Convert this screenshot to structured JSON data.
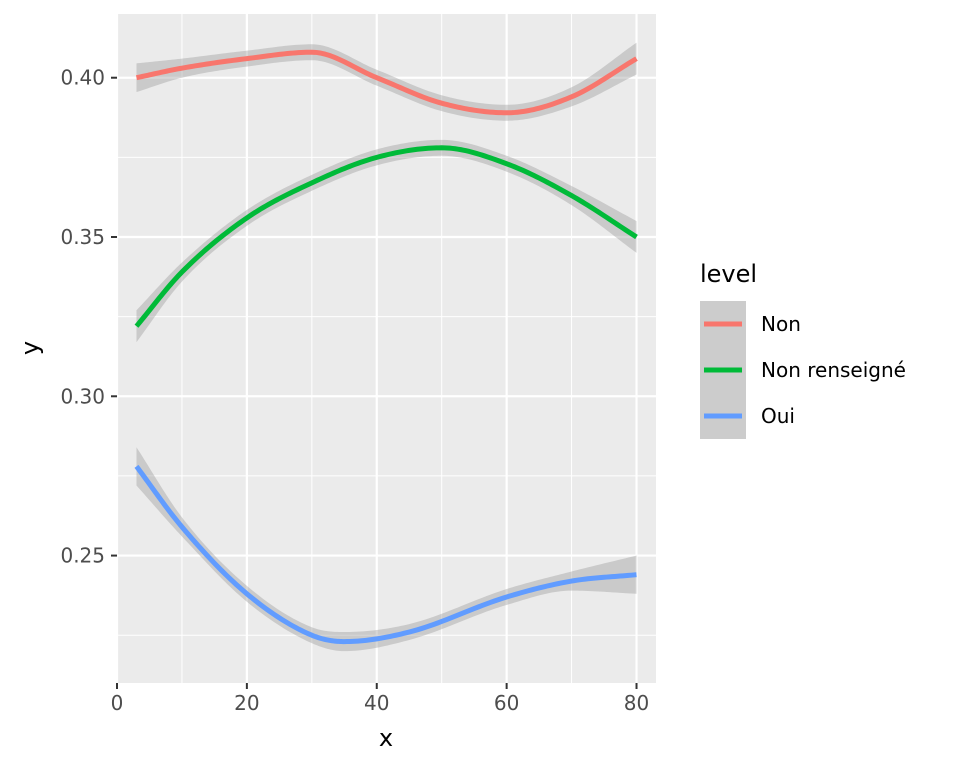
{
  "chart_data": {
    "type": "line",
    "title": "",
    "xlabel": "x",
    "ylabel": "y",
    "xlim": [
      0,
      83
    ],
    "ylim": [
      0.21,
      0.42
    ],
    "xticks": [
      0,
      20,
      40,
      60,
      80
    ],
    "xtick_labels": [
      "0",
      "20",
      "40",
      "60",
      "80"
    ],
    "yticks": [
      0.25,
      0.3,
      0.35,
      0.4
    ],
    "ytick_labels": [
      "0.25",
      "0.30",
      "0.35",
      "0.40"
    ],
    "grid": true,
    "confidence_band": true,
    "legend": {
      "title": "level",
      "position": "right"
    },
    "series": [
      {
        "name": "Non",
        "color": "#F8766D",
        "x": [
          3,
          10,
          20,
          30,
          40,
          50,
          60,
          70,
          80
        ],
        "y": [
          0.4,
          0.403,
          0.406,
          0.408,
          0.4,
          0.392,
          0.389,
          0.394,
          0.406
        ],
        "se": [
          0.0045,
          0.003,
          0.0025,
          0.0025,
          0.0025,
          0.0025,
          0.0025,
          0.003,
          0.005
        ]
      },
      {
        "name": "Non renseigné",
        "color": "#00BA38",
        "x": [
          3,
          10,
          20,
          30,
          40,
          50,
          60,
          70,
          80
        ],
        "y": [
          0.322,
          0.339,
          0.356,
          0.367,
          0.375,
          0.378,
          0.373,
          0.363,
          0.35
        ],
        "se": [
          0.005,
          0.003,
          0.0025,
          0.0025,
          0.0025,
          0.0025,
          0.0025,
          0.003,
          0.005
        ]
      },
      {
        "name": "Oui",
        "color": "#619CFF",
        "x": [
          3,
          10,
          20,
          30,
          35,
          45,
          60,
          70,
          80
        ],
        "y": [
          0.278,
          0.259,
          0.238,
          0.225,
          0.223,
          0.226,
          0.237,
          0.242,
          0.244
        ],
        "se": [
          0.006,
          0.003,
          0.0025,
          0.0025,
          0.003,
          0.0025,
          0.0025,
          0.003,
          0.006
        ]
      }
    ]
  }
}
